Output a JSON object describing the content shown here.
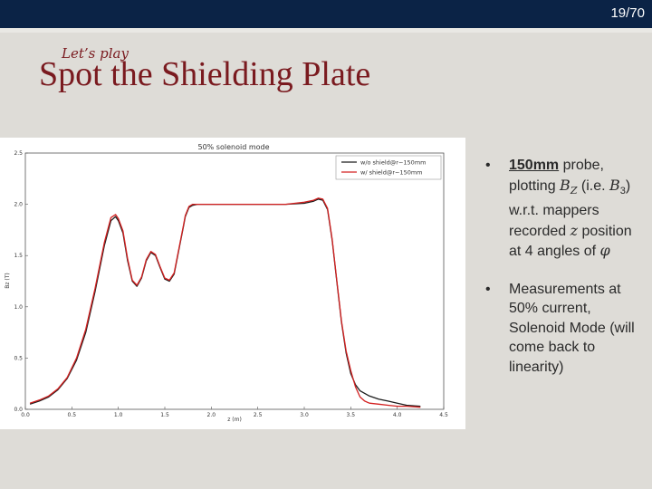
{
  "header": {
    "page_number": "19/70"
  },
  "slide": {
    "kicker": "Let’s play",
    "title": "Spot the Shielding Plate"
  },
  "bullets": [
    {
      "probe": "150mm",
      "t1": " probe, plotting ",
      "var_b": "B",
      "sub_z": "Z",
      "t2": " (i.e. ",
      "var_b3": "B",
      "sub_3": "3",
      "t3": ") w.r.t. mappers recorded ",
      "var_z": "z",
      "t4": " position at 4 angles of ",
      "var_phi": "φ"
    },
    {
      "text": "Measurements at 50% current, Solenoid Mode (will come back to linearity)"
    }
  ],
  "chart_data": {
    "type": "line",
    "title": "50% solenoid mode",
    "xlabel": "z (m)",
    "ylabel": "Bz (T)",
    "xlim": [
      0.0,
      4.5
    ],
    "ylim": [
      0.0,
      2.5
    ],
    "xticks": [
      "0.0",
      "0.5",
      "1.0",
      "1.5",
      "2.0",
      "2.5",
      "3.0",
      "3.5",
      "4.0",
      "4.5"
    ],
    "yticks": [
      "0.0",
      "0.5",
      "1.0",
      "1.5",
      "2.0",
      "2.5"
    ],
    "legend_position": "top-right",
    "series": [
      {
        "name": "w/o shield@r~150mm",
        "color": "#1c1c1c",
        "x": [
          0.05,
          0.15,
          0.25,
          0.35,
          0.45,
          0.55,
          0.65,
          0.75,
          0.85,
          0.92,
          0.97,
          1.0,
          1.05,
          1.1,
          1.15,
          1.2,
          1.25,
          1.3,
          1.35,
          1.4,
          1.45,
          1.5,
          1.55,
          1.6,
          1.65,
          1.7,
          1.72,
          1.76,
          1.8,
          1.85,
          1.9,
          2.0,
          2.2,
          2.5,
          2.8,
          3.0,
          3.1,
          3.15,
          3.2,
          3.25,
          3.3,
          3.35,
          3.4,
          3.45,
          3.5,
          3.55,
          3.6,
          3.7,
          3.8,
          3.9,
          4.0,
          4.1,
          4.25
        ],
        "y": [
          0.05,
          0.08,
          0.12,
          0.19,
          0.3,
          0.48,
          0.75,
          1.15,
          1.6,
          1.84,
          1.88,
          1.84,
          1.72,
          1.45,
          1.25,
          1.2,
          1.28,
          1.45,
          1.53,
          1.5,
          1.38,
          1.27,
          1.25,
          1.32,
          1.55,
          1.78,
          1.88,
          1.97,
          1.99,
          2.0,
          2.0,
          2.0,
          2.0,
          2.0,
          2.0,
          2.01,
          2.03,
          2.05,
          2.04,
          1.95,
          1.65,
          1.25,
          0.85,
          0.55,
          0.35,
          0.24,
          0.18,
          0.13,
          0.1,
          0.08,
          0.06,
          0.04,
          0.03
        ]
      },
      {
        "name": "w/ shield@r~150mm",
        "color": "#d32020",
        "x": [
          0.05,
          0.15,
          0.25,
          0.35,
          0.45,
          0.55,
          0.65,
          0.75,
          0.85,
          0.92,
          0.97,
          1.0,
          1.05,
          1.1,
          1.15,
          1.2,
          1.25,
          1.3,
          1.35,
          1.4,
          1.45,
          1.5,
          1.55,
          1.6,
          1.65,
          1.7,
          1.72,
          1.76,
          1.8,
          1.85,
          1.9,
          2.0,
          2.2,
          2.5,
          2.8,
          3.0,
          3.1,
          3.15,
          3.2,
          3.25,
          3.3,
          3.35,
          3.4,
          3.45,
          3.5,
          3.55,
          3.6,
          3.65,
          3.7,
          3.8,
          3.9,
          4.0,
          4.1,
          4.25
        ],
        "y": [
          0.06,
          0.09,
          0.13,
          0.2,
          0.31,
          0.5,
          0.78,
          1.18,
          1.63,
          1.87,
          1.9,
          1.86,
          1.74,
          1.47,
          1.26,
          1.21,
          1.29,
          1.46,
          1.54,
          1.51,
          1.39,
          1.28,
          1.26,
          1.33,
          1.56,
          1.79,
          1.89,
          1.98,
          2.0,
          2.0,
          2.0,
          2.0,
          2.0,
          2.0,
          2.0,
          2.02,
          2.04,
          2.06,
          2.05,
          1.96,
          1.66,
          1.26,
          0.86,
          0.57,
          0.38,
          0.22,
          0.12,
          0.08,
          0.06,
          0.05,
          0.04,
          0.03,
          0.03,
          0.02
        ]
      }
    ]
  }
}
